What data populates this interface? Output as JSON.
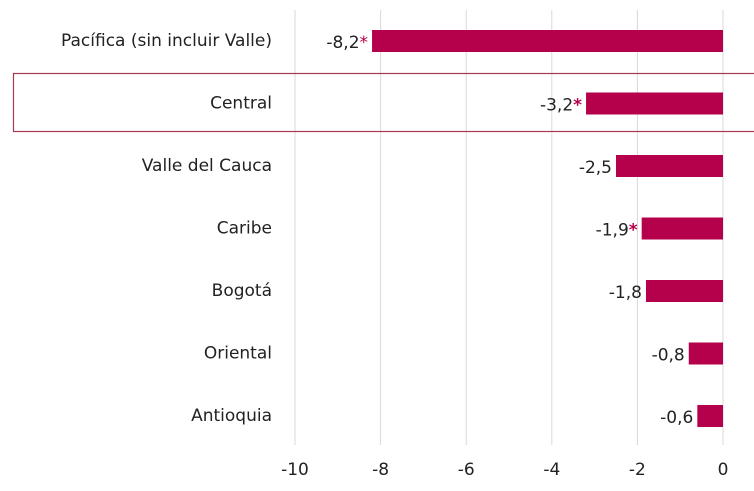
{
  "chart_data": {
    "type": "barh",
    "categories": [
      "Pacífica (sin incluir Valle)",
      "Central",
      "Valle del Cauca",
      "Caribe",
      "Bogotá",
      "Oriental",
      "Antioquia"
    ],
    "values": [
      -8.2,
      -3.2,
      -2.5,
      -1.9,
      -1.8,
      -0.8,
      -0.6
    ],
    "value_labels": [
      "-8,2*",
      "-3,2*",
      "-2,5",
      "-1,9*",
      "-1,8",
      "-0,8",
      "-0,6"
    ],
    "color": "#b5004b",
    "highlight_category": "Central",
    "xlim": [
      -10,
      0
    ],
    "xticks": [
      -10,
      -8,
      -6,
      -4,
      -2,
      0
    ],
    "grid": true
  }
}
